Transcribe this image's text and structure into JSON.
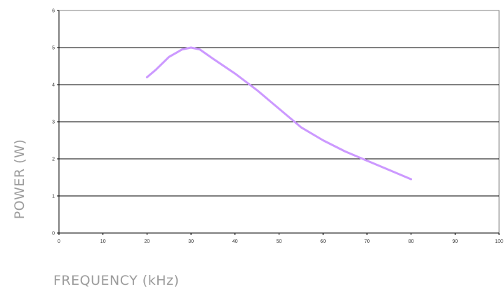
{
  "chart_data": {
    "type": "line",
    "title": "",
    "xlabel": "FREQUENCY (kHz)",
    "ylabel": "POWER (W)",
    "xlim": [
      0,
      100
    ],
    "ylim": [
      0,
      6
    ],
    "xticks": [
      0,
      10,
      20,
      30,
      40,
      50,
      60,
      70,
      80,
      90,
      100
    ],
    "yticks": [
      0,
      1,
      2,
      3,
      4,
      5,
      6
    ],
    "grid": "horizontal",
    "legend": "none",
    "series": [
      {
        "color": "#cc99ff",
        "x": [
          20,
          22,
          25,
          28,
          30,
          32,
          35,
          40,
          45,
          50,
          55,
          60,
          65,
          70,
          75,
          80
        ],
        "y": [
          4.2,
          4.4,
          4.75,
          4.95,
          5.0,
          4.95,
          4.7,
          4.3,
          3.85,
          3.35,
          2.85,
          2.5,
          2.2,
          1.95,
          1.7,
          1.45
        ]
      }
    ]
  }
}
